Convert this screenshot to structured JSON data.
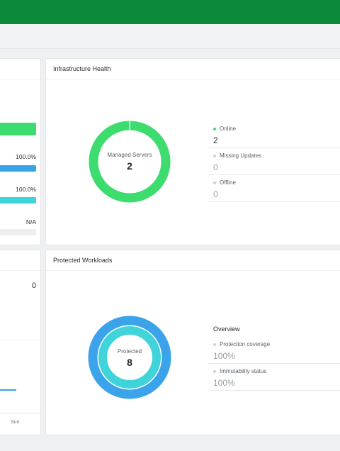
{
  "colors": {
    "header_green": "#0b8a3b",
    "online_green": "#3ddc6e",
    "blue": "#3ba3ea",
    "teal": "#3fd3da"
  },
  "left_panel_top": {
    "values": [
      "100.0%",
      "100.0%",
      "N/A"
    ],
    "bars": [
      {
        "color": "#3ddc6e",
        "fraction": 1.0
      },
      {
        "color": "#3ba3ea",
        "fraction": 1.0
      },
      {
        "color": "#3fd3da",
        "fraction": 1.0
      },
      {
        "color": "#eceeef",
        "fraction": 1.0
      }
    ]
  },
  "left_panel_bottom": {
    "value": "0",
    "day_label": "Sun"
  },
  "infrastructure": {
    "title": "Infrastructure Health",
    "donut_label": "Managed Servers",
    "donut_value": "2",
    "statuses": [
      {
        "label": "Online",
        "value": "2",
        "color": "#3ddc6e"
      },
      {
        "label": "Missing Updates",
        "value": "0",
        "color": "#cfd3d6"
      },
      {
        "label": "Offline",
        "value": "0",
        "color": "#cfd3d6"
      }
    ]
  },
  "workloads": {
    "title": "Protected Workloads",
    "donut_label": "Protected",
    "donut_value": "8",
    "overview_title": "Overview",
    "items": [
      {
        "label": "Protection coverage",
        "value": "100%"
      },
      {
        "label": "Immutability status",
        "value": "100%"
      }
    ]
  }
}
